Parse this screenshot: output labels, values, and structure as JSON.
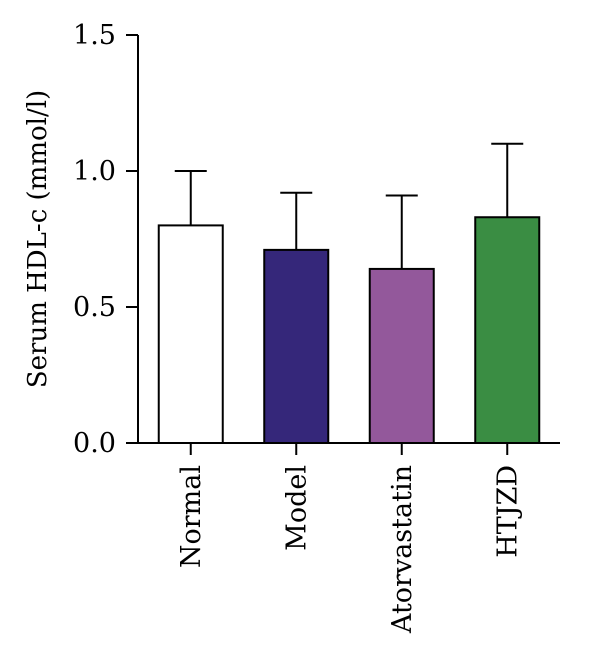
{
  "chart_data": {
    "type": "bar",
    "title": "",
    "xlabel": "",
    "ylabel": "Serum HDL-c (mmol/l)",
    "ylim": [
      0,
      1.5
    ],
    "yticks": [
      "0.0",
      "0.5",
      "1.0",
      "1.5"
    ],
    "categories": [
      "Normal",
      "Model",
      "Atorvastatin",
      "HTJZD"
    ],
    "values": [
      0.8,
      0.71,
      0.64,
      0.83
    ],
    "error_upper": [
      1.0,
      0.92,
      0.91,
      1.1
    ],
    "colors": [
      "#ffffff",
      "#35277a",
      "#93589b",
      "#3a8d43"
    ],
    "grid": false,
    "legend": "none"
  }
}
